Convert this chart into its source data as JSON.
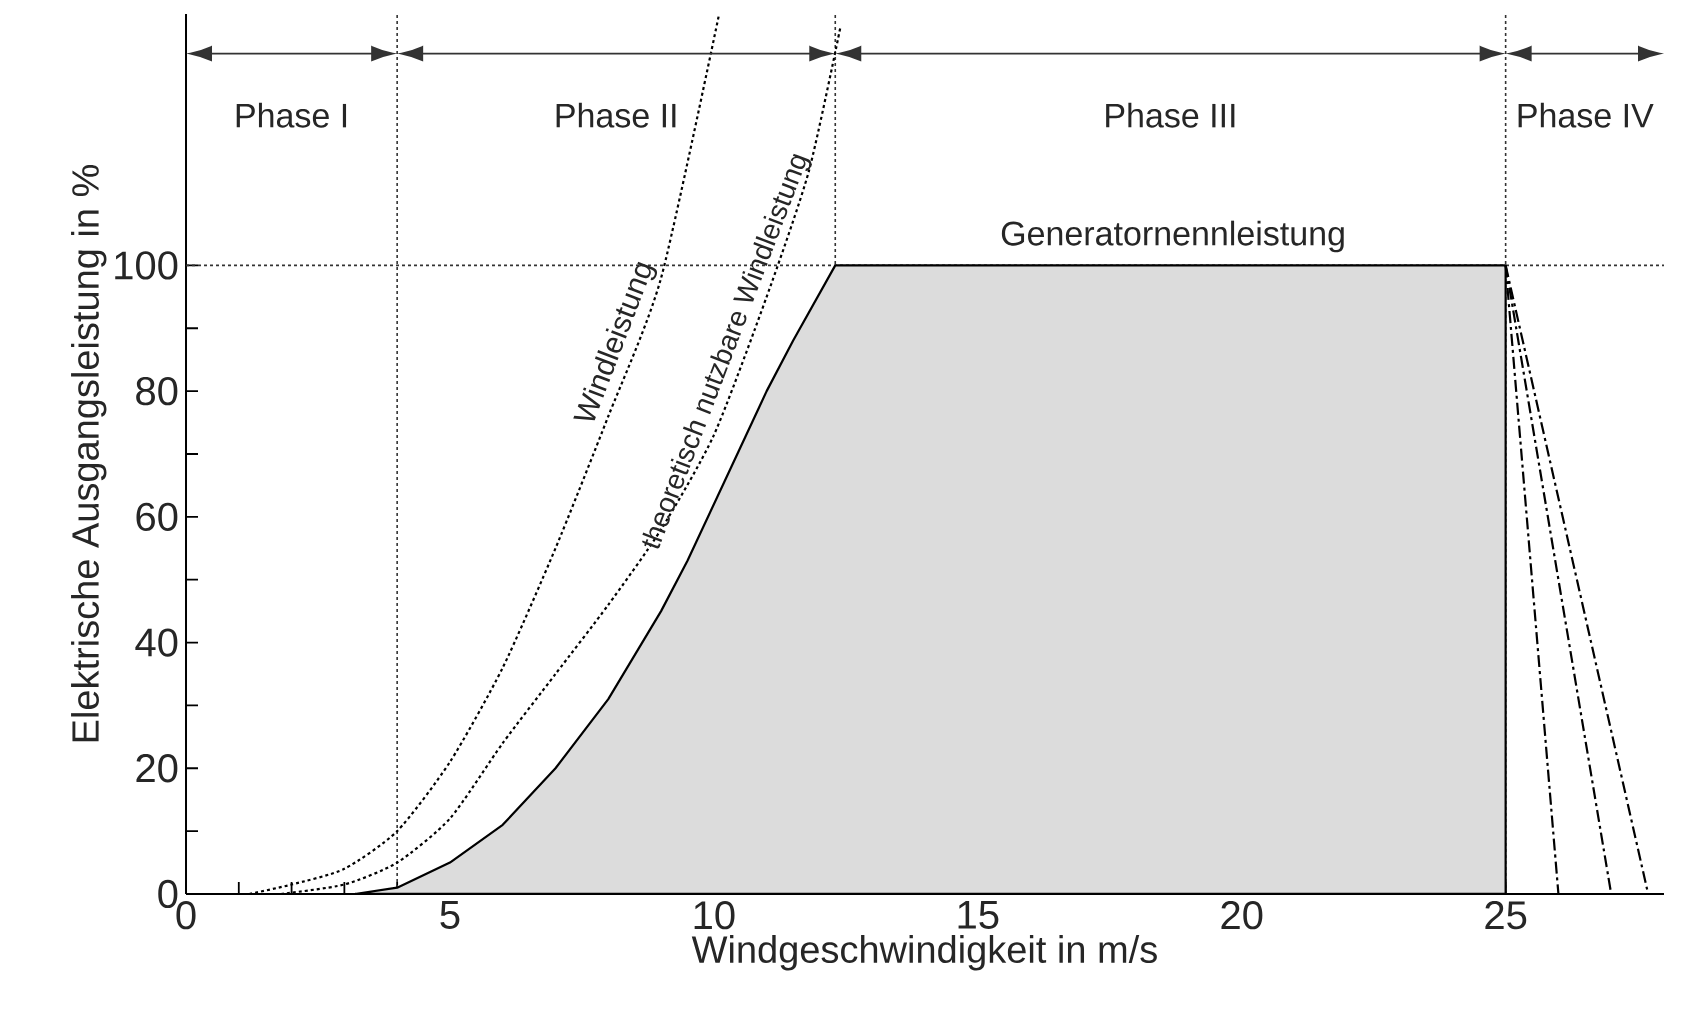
{
  "chart_data": {
    "type": "line",
    "xlabel": "Windgeschwindigkeit in m/s",
    "ylabel": "Elektrische Ausgangsleistung in %",
    "xlim": [
      0,
      28
    ],
    "ylim": [
      0,
      140
    ],
    "xticks": [
      0,
      {
        "value": 1,
        "label": null
      },
      {
        "value": 2,
        "label": null
      },
      {
        "value": 3,
        "label": null
      },
      {
        "value": 4,
        "label": null
      },
      5,
      {
        "value": 6,
        "label": null
      },
      {
        "value": 7,
        "label": null
      },
      {
        "value": 8,
        "label": null
      },
      {
        "value": 9,
        "label": null
      },
      10,
      {
        "value": 11,
        "label": null
      },
      {
        "value": 12,
        "label": null
      },
      {
        "value": 13,
        "label": null
      },
      {
        "value": 14,
        "label": null
      },
      15,
      {
        "value": 16,
        "label": null
      },
      {
        "value": 17,
        "label": null
      },
      {
        "value": 18,
        "label": null
      },
      {
        "value": 19,
        "label": null
      },
      20,
      {
        "value": 21,
        "label": null
      },
      {
        "value": 22,
        "label": null
      },
      {
        "value": 23,
        "label": null
      },
      {
        "value": 24,
        "label": null
      },
      25
    ],
    "yticks": [
      0,
      {
        "value": 10,
        "label": null
      },
      20,
      {
        "value": 30,
        "label": null
      },
      40,
      {
        "value": 50,
        "label": null
      },
      60,
      {
        "value": 70,
        "label": null
      },
      80,
      {
        "value": 90,
        "label": null
      },
      100
    ],
    "grid": false,
    "series": [
      {
        "name": "Windleistung",
        "line_style": "dotted",
        "color": "#000000",
        "x": [
          1.2,
          2,
          3,
          4,
          5,
          6,
          7,
          8,
          9,
          10.1
        ],
        "values": [
          0,
          1.5,
          4,
          10,
          21,
          36,
          55,
          76,
          98,
          140
        ]
      },
      {
        "name": "theoretisch nutzbare Windleistung",
        "line_style": "dotted",
        "color": "#000000",
        "x": [
          1.8,
          3,
          4,
          5,
          6,
          7,
          8,
          9,
          10,
          11,
          11.8,
          12.4
        ],
        "values": [
          0,
          1.5,
          5,
          12,
          24,
          35,
          46,
          58,
          73,
          95,
          115,
          138
        ]
      },
      {
        "type": "area",
        "color": "#dcdcdc",
        "x": [
          3.2,
          4,
          5,
          6,
          7,
          8,
          8.5,
          9,
          9.5,
          10,
          10.5,
          11,
          11.5,
          12.3,
          25,
          25
        ],
        "values": [
          0,
          1,
          5,
          11,
          20,
          31,
          38,
          45,
          53,
          62,
          71,
          80,
          88,
          100,
          100,
          0
        ]
      },
      {
        "line_style": "dashed",
        "color": "#000000",
        "x": [
          25,
          26
        ],
        "values": [
          100,
          0
        ]
      },
      {
        "line_style": "dashed",
        "color": "#000000",
        "x": [
          25,
          27
        ],
        "values": [
          100,
          0
        ]
      },
      {
        "line_style": "dashed",
        "color": "#000000",
        "x": [
          25,
          27.7
        ],
        "values": [
          100,
          0
        ]
      }
    ],
    "ref_lines": [
      {
        "axis": "x",
        "value": 4,
        "line_style": "dotted"
      },
      {
        "axis": "x",
        "value": 12.3,
        "line_style": "dotted"
      },
      {
        "axis": "x",
        "value": 25,
        "line_style": "dotted"
      },
      {
        "axis": "y",
        "value": 100,
        "line_style": "dotted"
      }
    ],
    "annotations": [
      "Phase I",
      "Phase II",
      "Phase III",
      "Phase IV",
      {
        "text": "Generatornennleistung",
        "x": 18.7,
        "y": 100
      }
    ]
  }
}
